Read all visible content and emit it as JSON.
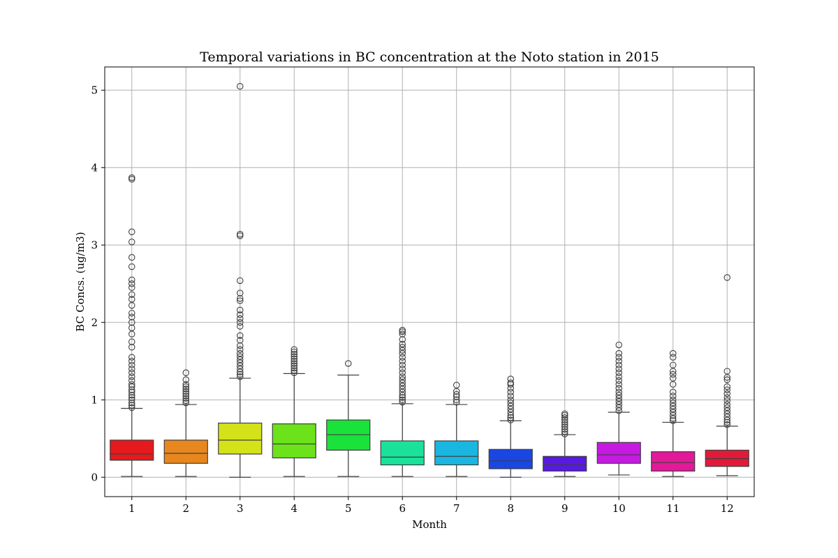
{
  "chart_data": {
    "type": "box",
    "title": "Temporal variations in BC concentration at the Noto station in 2015",
    "xlabel": "Month",
    "ylabel": "BC Concs. (ug/m3)",
    "ylim": [
      -0.25,
      5.3
    ],
    "yticks": [
      0,
      1,
      2,
      3,
      4,
      5
    ],
    "grid": true,
    "categories": [
      "1",
      "2",
      "3",
      "4",
      "5",
      "6",
      "7",
      "8",
      "9",
      "10",
      "11",
      "12"
    ],
    "colors": [
      "#e41a1c",
      "#e8871e",
      "#d4e21a",
      "#6be21a",
      "#1ae23a",
      "#1ae29a",
      "#1ab6e2",
      "#1a46e2",
      "#581ae2",
      "#c61ae2",
      "#e21a9a",
      "#e21a3a"
    ],
    "boxes": [
      {
        "month": "1",
        "whislo": 0.01,
        "q1": 0.22,
        "med": 0.3,
        "q3": 0.48,
        "whishi": 0.89,
        "fliers": [
          0.9,
          0.93,
          0.96,
          1.0,
          1.03,
          1.06,
          1.1,
          1.13,
          1.17,
          1.2,
          1.25,
          1.3,
          1.35,
          1.4,
          1.45,
          1.5,
          1.55,
          1.68,
          1.75,
          1.85,
          1.93,
          2.0,
          2.07,
          2.12,
          2.22,
          2.3,
          2.36,
          2.45,
          2.5,
          2.55,
          2.72,
          2.84,
          3.04,
          3.17,
          3.85,
          3.87
        ]
      },
      {
        "month": "2",
        "whislo": 0.01,
        "q1": 0.18,
        "med": 0.31,
        "q3": 0.48,
        "whishi": 0.94,
        "fliers": [
          0.96,
          0.99,
          1.02,
          1.05,
          1.08,
          1.11,
          1.14,
          1.17,
          1.2,
          1.26,
          1.35
        ]
      },
      {
        "month": "3",
        "whislo": 0.0,
        "q1": 0.3,
        "med": 0.48,
        "q3": 0.7,
        "whishi": 1.28,
        "fliers": [
          1.3,
          1.33,
          1.36,
          1.4,
          1.44,
          1.48,
          1.52,
          1.56,
          1.6,
          1.65,
          1.7,
          1.77,
          1.83,
          1.95,
          2.0,
          2.05,
          2.1,
          2.16,
          2.28,
          2.31,
          2.38,
          2.54,
          3.12,
          3.14,
          5.05
        ]
      },
      {
        "month": "4",
        "whislo": 0.01,
        "q1": 0.25,
        "med": 0.43,
        "q3": 0.69,
        "whishi": 1.34,
        "fliers": [
          1.35,
          1.38,
          1.41,
          1.44,
          1.47,
          1.5,
          1.53,
          1.56,
          1.59,
          1.62,
          1.65
        ]
      },
      {
        "month": "5",
        "whislo": 0.01,
        "q1": 0.35,
        "med": 0.55,
        "q3": 0.74,
        "whishi": 1.32,
        "fliers": [
          1.47
        ]
      },
      {
        "month": "6",
        "whislo": 0.01,
        "q1": 0.16,
        "med": 0.26,
        "q3": 0.47,
        "whishi": 0.95,
        "fliers": [
          0.97,
          1.0,
          1.03,
          1.06,
          1.1,
          1.14,
          1.18,
          1.22,
          1.26,
          1.3,
          1.35,
          1.4,
          1.45,
          1.5,
          1.55,
          1.6,
          1.64,
          1.68,
          1.72,
          1.78,
          1.85,
          1.88,
          1.9
        ]
      },
      {
        "month": "7",
        "whislo": 0.01,
        "q1": 0.16,
        "med": 0.27,
        "q3": 0.47,
        "whishi": 0.94,
        "fliers": [
          0.97,
          1.0,
          1.04,
          1.07,
          1.11,
          1.19
        ]
      },
      {
        "month": "8",
        "whislo": 0.0,
        "q1": 0.11,
        "med": 0.21,
        "q3": 0.36,
        "whishi": 0.73,
        "fliers": [
          0.74,
          0.77,
          0.8,
          0.84,
          0.88,
          0.92,
          0.96,
          1.0,
          1.05,
          1.1,
          1.15,
          1.2,
          1.22,
          1.27
        ]
      },
      {
        "month": "9",
        "whislo": 0.01,
        "q1": 0.08,
        "med": 0.16,
        "q3": 0.27,
        "whishi": 0.55,
        "fliers": [
          0.56,
          0.59,
          0.62,
          0.65,
          0.68,
          0.71,
          0.74,
          0.77,
          0.8,
          0.82
        ]
      },
      {
        "month": "10",
        "whislo": 0.03,
        "q1": 0.18,
        "med": 0.29,
        "q3": 0.45,
        "whishi": 0.84,
        "fliers": [
          0.86,
          0.9,
          0.94,
          0.98,
          1.02,
          1.06,
          1.1,
          1.15,
          1.2,
          1.25,
          1.3,
          1.35,
          1.4,
          1.45,
          1.5,
          1.55,
          1.6,
          1.71
        ]
      },
      {
        "month": "11",
        "whislo": 0.01,
        "q1": 0.08,
        "med": 0.19,
        "q3": 0.33,
        "whishi": 0.71,
        "fliers": [
          0.73,
          0.76,
          0.8,
          0.84,
          0.88,
          0.92,
          0.96,
          1.0,
          1.05,
          1.1,
          1.2,
          1.28,
          1.33,
          1.37,
          1.45,
          1.55,
          1.6
        ]
      },
      {
        "month": "12",
        "whislo": 0.02,
        "q1": 0.14,
        "med": 0.24,
        "q3": 0.35,
        "whishi": 0.66,
        "fliers": [
          0.68,
          0.71,
          0.74,
          0.78,
          0.82,
          0.86,
          0.9,
          0.94,
          0.99,
          1.03,
          1.08,
          1.13,
          1.17,
          1.26,
          1.29,
          1.37,
          2.58
        ]
      }
    ]
  }
}
